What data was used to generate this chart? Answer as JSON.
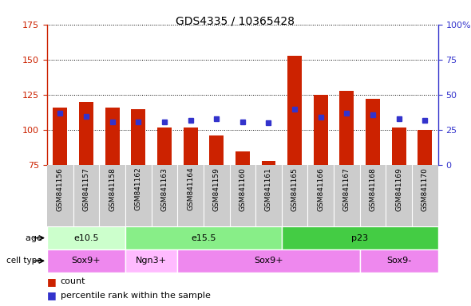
{
  "title": "GDS4335 / 10365428",
  "samples": [
    "GSM841156",
    "GSM841157",
    "GSM841158",
    "GSM841162",
    "GSM841163",
    "GSM841164",
    "GSM841159",
    "GSM841160",
    "GSM841161",
    "GSM841165",
    "GSM841166",
    "GSM841167",
    "GSM841168",
    "GSM841169",
    "GSM841170"
  ],
  "counts": [
    116,
    120,
    116,
    115,
    102,
    102,
    96,
    85,
    78,
    153,
    125,
    128,
    122,
    102,
    100
  ],
  "percentiles_left_axis": [
    112,
    110,
    106,
    106,
    106,
    107,
    108,
    106,
    105,
    115,
    109,
    112,
    111,
    108,
    107
  ],
  "ylim_left": [
    75,
    175
  ],
  "ylim_right": [
    0,
    100
  ],
  "yticks_left": [
    75,
    100,
    125,
    150,
    175
  ],
  "yticks_right": [
    0,
    25,
    50,
    75,
    100
  ],
  "yticklabels_right": [
    "0",
    "25",
    "50",
    "75",
    "100%"
  ],
  "bar_color": "#cc2200",
  "dot_color": "#3333cc",
  "bar_bottom": 75,
  "age_groups": [
    {
      "label": "e10.5",
      "start": 0,
      "end": 3,
      "color": "#ccffcc"
    },
    {
      "label": "e15.5",
      "start": 3,
      "end": 9,
      "color": "#88ee88"
    },
    {
      "label": "p23",
      "start": 9,
      "end": 15,
      "color": "#44cc44"
    }
  ],
  "cell_type_groups": [
    {
      "label": "Sox9+",
      "start": 0,
      "end": 3,
      "color": "#ee88ee"
    },
    {
      "label": "Ngn3+",
      "start": 3,
      "end": 5,
      "color": "#ffbbff"
    },
    {
      "label": "Sox9+",
      "start": 5,
      "end": 12,
      "color": "#ee88ee"
    },
    {
      "label": "Sox9-",
      "start": 12,
      "end": 15,
      "color": "#ee88ee"
    }
  ],
  "sample_label_bg": "#cccccc",
  "plot_bg": "#ffffff",
  "legend_count_color": "#cc2200",
  "legend_dot_color": "#3333cc"
}
